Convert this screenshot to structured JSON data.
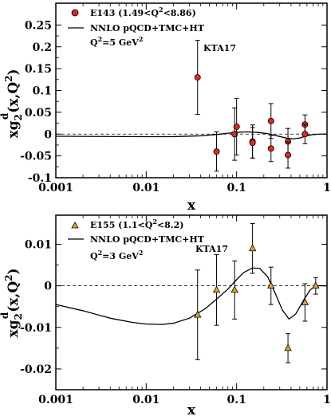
{
  "chart_data": [
    {
      "type": "scatter",
      "xscale": "log",
      "xlim": [
        0.001,
        1
      ],
      "ylim": [
        -0.1,
        0.3
      ],
      "xlabel": "x",
      "ylabel": "xg2d(x,Q2)",
      "yticks": [
        "-0.1",
        "-0.05",
        "0",
        "0.05",
        "0.1",
        "0.15",
        "0.2",
        "0.25"
      ],
      "ytick_values": [
        -0.1,
        -0.05,
        0,
        0.05,
        0.1,
        0.15,
        0.2,
        0.25
      ],
      "xticks": [
        "0.001",
        "0.01",
        "0.1",
        "1"
      ],
      "xtick_values": [
        0.001,
        0.01,
        0.1,
        1
      ],
      "legend": {
        "data_label": "E143 (1.49<Q2<8.86)",
        "curve_label": "NNLO pQCD+TMC+HT",
        "q2_label": "Q2=5 GeV2",
        "tag": "KTA17"
      },
      "marker_color": "#e3261e",
      "points": [
        {
          "x": 0.037,
          "y": 0.13,
          "err": 0.085
        },
        {
          "x": 0.06,
          "y": -0.04,
          "err": 0.045
        },
        {
          "x": 0.095,
          "y": 0.0,
          "err": 0.06
        },
        {
          "x": 0.1,
          "y": 0.017,
          "err": 0.065
        },
        {
          "x": 0.15,
          "y": -0.017,
          "err": 0.038
        },
        {
          "x": 0.15,
          "y": -0.02,
          "err": 0.035
        },
        {
          "x": 0.24,
          "y": 0.03,
          "err": 0.04
        },
        {
          "x": 0.24,
          "y": -0.033,
          "err": 0.03
        },
        {
          "x": 0.37,
          "y": -0.017,
          "err": 0.03
        },
        {
          "x": 0.37,
          "y": -0.048,
          "err": 0.03
        },
        {
          "x": 0.57,
          "y": 0.022,
          "err": 0.022
        },
        {
          "x": 0.57,
          "y": 0.0,
          "err": 0.022
        }
      ],
      "curve": {
        "x": [
          0.001,
          0.003,
          0.01,
          0.02,
          0.04,
          0.06,
          0.08,
          0.1,
          0.13,
          0.17,
          0.22,
          0.28,
          0.35,
          0.42,
          0.5,
          0.6,
          0.7,
          0.85,
          1.0
        ],
        "y": [
          -0.005,
          -0.0055,
          -0.006,
          -0.0058,
          -0.004,
          -0.001,
          0.002,
          0.004,
          0.005,
          0.004,
          0.001,
          -0.004,
          -0.009,
          -0.011,
          -0.009,
          -0.004,
          -0.001,
          0.0,
          0.0
        ]
      }
    },
    {
      "type": "scatter",
      "xscale": "log",
      "xlim": [
        0.001,
        1
      ],
      "ylim": [
        -0.025,
        0.017
      ],
      "xlabel": "x",
      "ylabel": "xg2d(x,Q2)",
      "yticks": [
        "-0.02",
        "-0.01",
        "0",
        "0.01"
      ],
      "ytick_values": [
        -0.02,
        -0.01,
        0,
        0.01
      ],
      "xticks": [
        "0.001",
        "0.01",
        "0.1",
        "1"
      ],
      "xtick_values": [
        0.001,
        0.01,
        0.1,
        1
      ],
      "legend": {
        "data_label": "E155 (1.1<Q2<8.2)",
        "curve_label": "NNLO pQCD+TMC+HT",
        "q2_label": "Q2=3 GeV2",
        "tag": "KTA17"
      },
      "marker_color": "#e3a52a",
      "points": [
        {
          "x": 0.037,
          "y": -0.007,
          "err": 0.0108
        },
        {
          "x": 0.06,
          "y": -0.001,
          "err": 0.0085
        },
        {
          "x": 0.095,
          "y": -0.001,
          "err": 0.007
        },
        {
          "x": 0.15,
          "y": 0.009,
          "err": 0.006
        },
        {
          "x": 0.24,
          "y": 0.0,
          "err": 0.0045
        },
        {
          "x": 0.37,
          "y": -0.015,
          "err": 0.0035
        },
        {
          "x": 0.57,
          "y": -0.004,
          "err": 0.0045
        },
        {
          "x": 0.75,
          "y": 0.0,
          "err": 0.002
        }
      ],
      "curve": {
        "x": [
          0.001,
          0.002,
          0.004,
          0.007,
          0.01,
          0.015,
          0.02,
          0.03,
          0.045,
          0.06,
          0.08,
          0.1,
          0.12,
          0.15,
          0.18,
          0.22,
          0.27,
          0.32,
          0.38,
          0.45,
          0.55,
          0.65,
          0.75,
          0.85,
          1.0
        ],
        "y": [
          -0.0045,
          -0.006,
          -0.0078,
          -0.0088,
          -0.0092,
          -0.0093,
          -0.009,
          -0.0078,
          -0.0055,
          -0.0032,
          -0.0008,
          0.0015,
          0.0032,
          0.0043,
          0.0042,
          0.0022,
          -0.002,
          -0.0058,
          -0.008,
          -0.0068,
          -0.0035,
          -0.001,
          0.0,
          0.0,
          0.0
        ]
      }
    }
  ]
}
